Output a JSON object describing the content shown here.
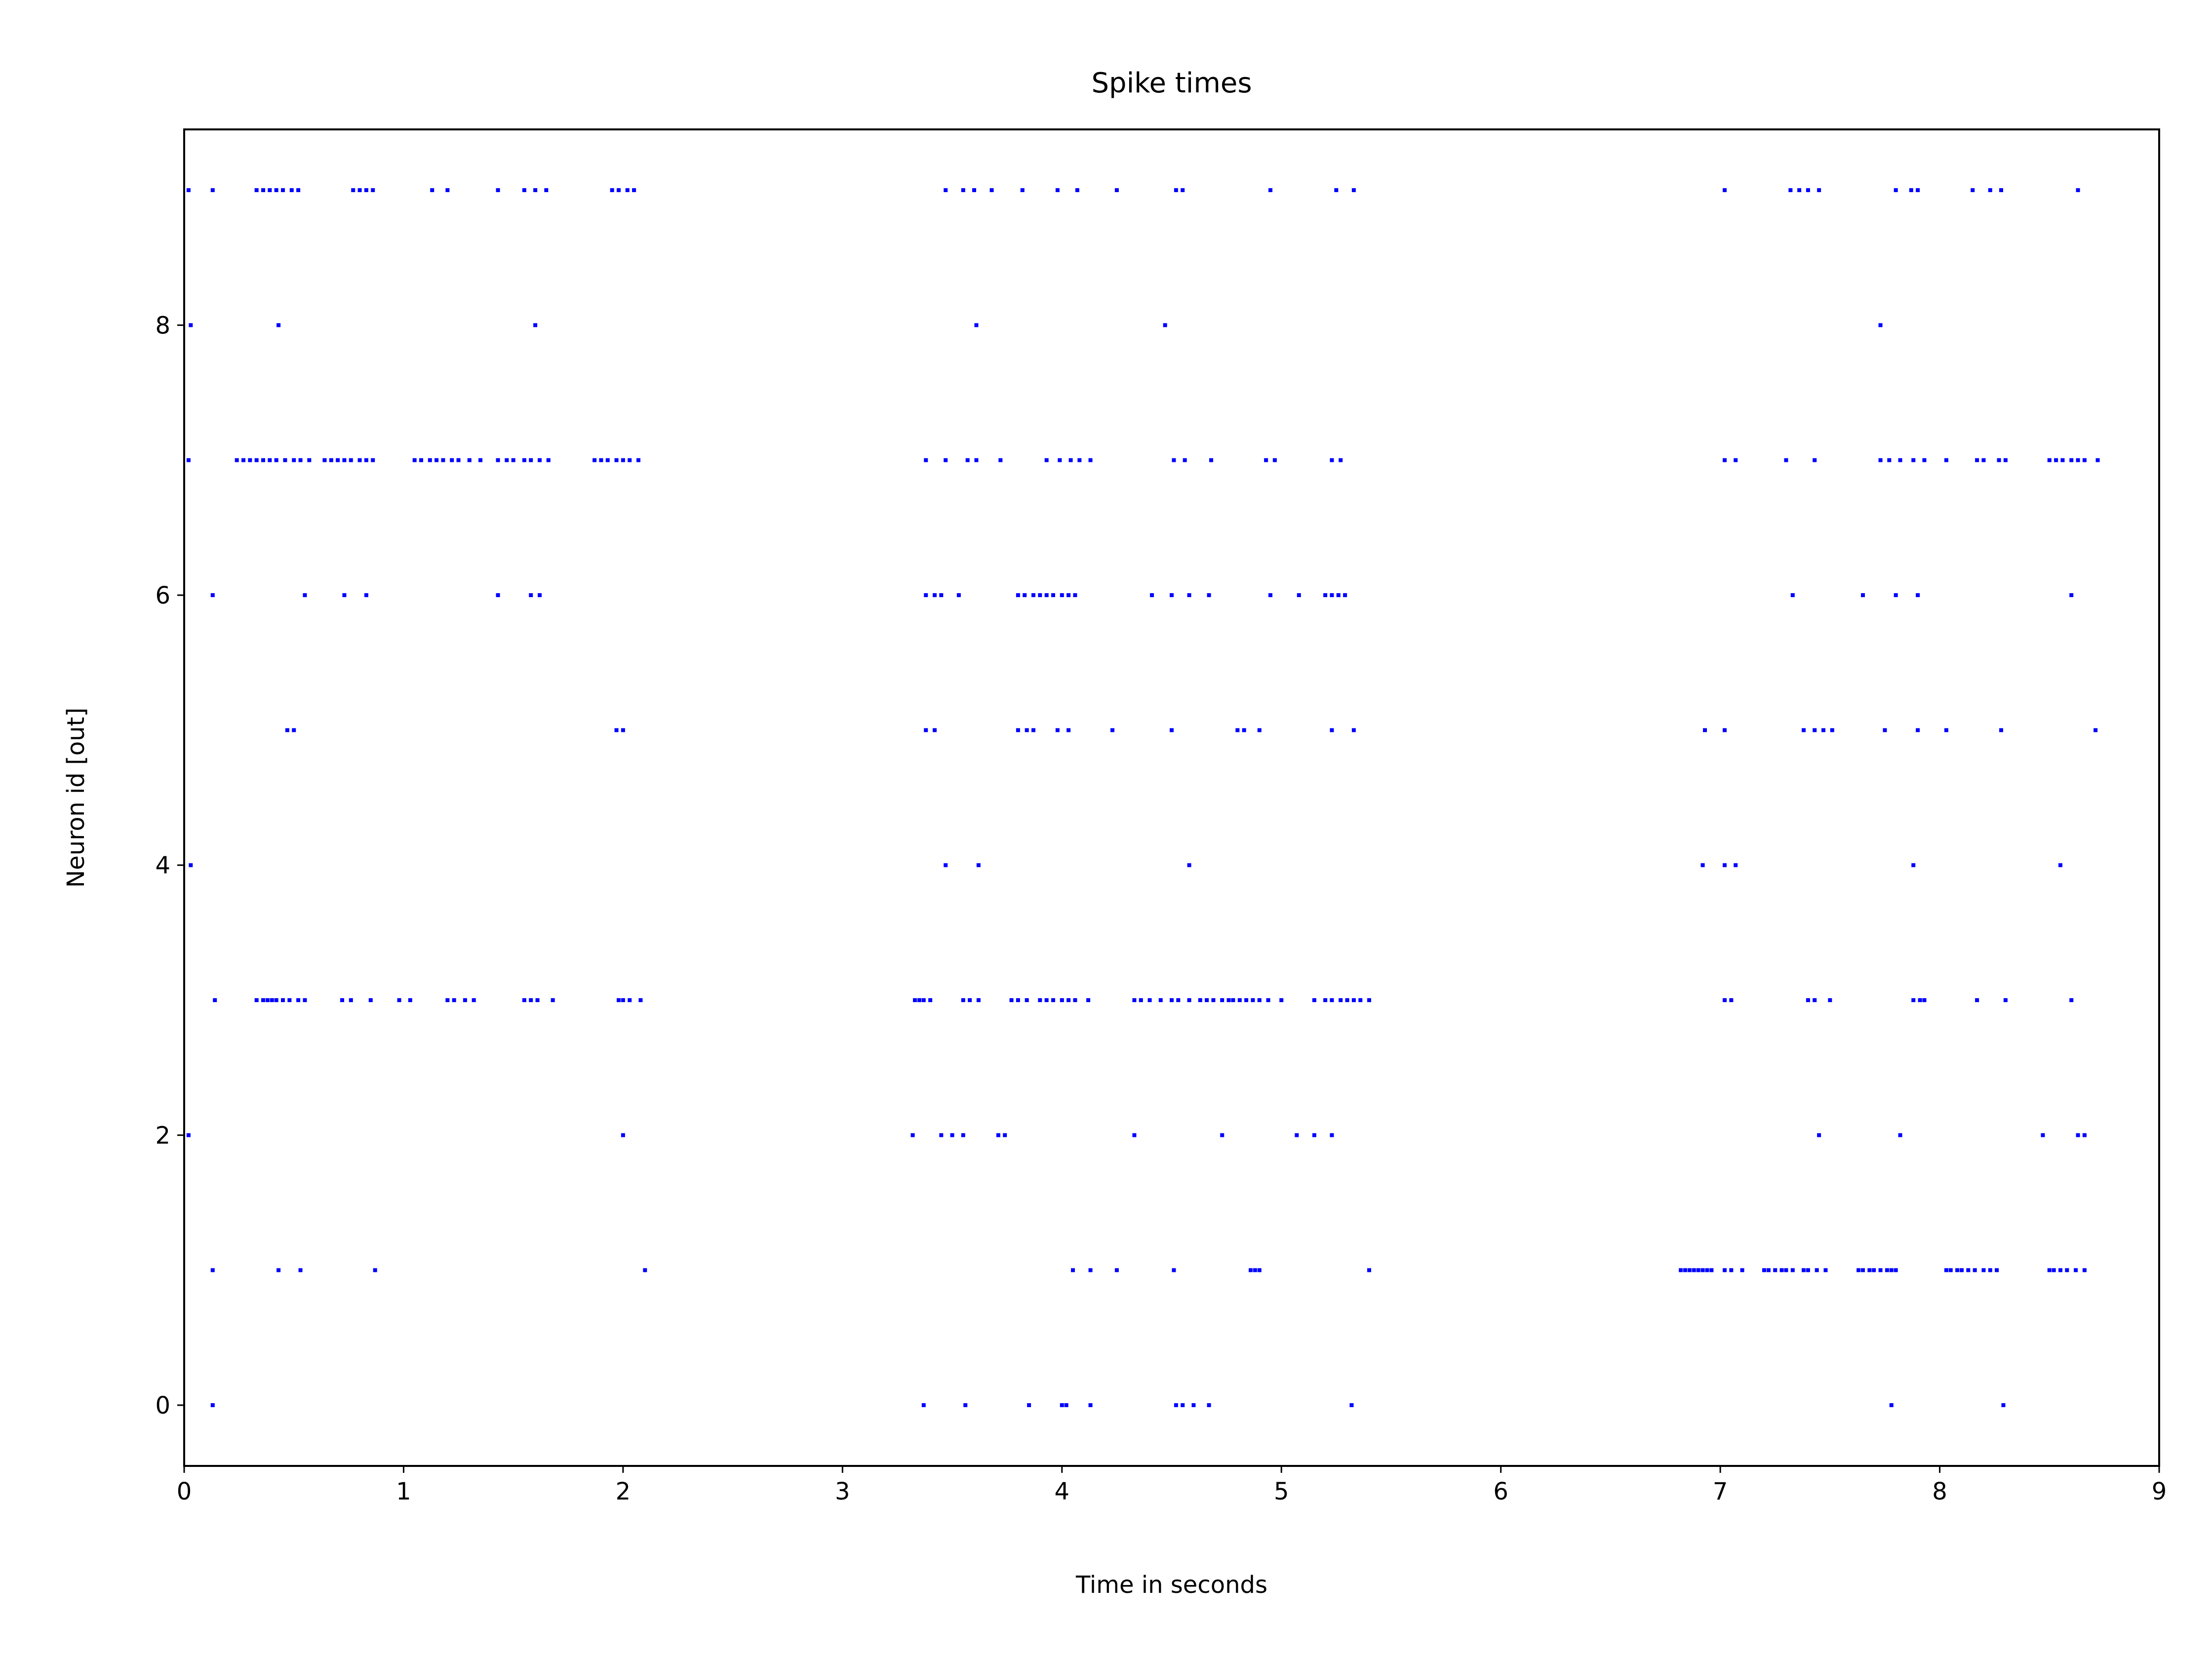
{
  "chart_data": {
    "type": "scatter",
    "title": "Spike times",
    "xlabel": "Time in seconds",
    "ylabel": "Neuron id [out]",
    "xlim": [
      0,
      9
    ],
    "ylim": [
      -0.45,
      9.45
    ],
    "xticks": [
      0,
      1,
      2,
      3,
      4,
      5,
      6,
      7,
      8,
      9
    ],
    "yticks": [
      0,
      2,
      4,
      6,
      8
    ],
    "grid": false,
    "legend": "none",
    "marker_color": "#0000ff",
    "series": [
      {
        "neuron": 0,
        "x": [
          0.13,
          3.37,
          3.56,
          3.85,
          4.0,
          4.02,
          4.13,
          4.52,
          4.55,
          4.6,
          4.67,
          5.32,
          7.78,
          8.29
        ]
      },
      {
        "neuron": 1,
        "x": [
          0.13,
          0.43,
          0.53,
          0.87,
          2.1,
          4.05,
          4.13,
          4.25,
          4.51,
          4.86,
          4.88,
          4.9,
          5.4,
          6.82,
          6.84,
          6.86,
          6.88,
          6.9,
          6.92,
          6.94,
          6.96,
          7.02,
          7.05,
          7.1,
          7.2,
          7.22,
          7.25,
          7.28,
          7.3,
          7.33,
          7.38,
          7.4,
          7.44,
          7.48,
          7.63,
          7.65,
          7.68,
          7.7,
          7.73,
          7.76,
          7.78,
          7.8,
          8.03,
          8.05,
          8.08,
          8.1,
          8.13,
          8.16,
          8.2,
          8.23,
          8.26,
          8.5,
          8.52,
          8.55,
          8.58,
          8.62,
          8.66
        ]
      },
      {
        "neuron": 2,
        "x": [
          0.02,
          2.0,
          3.32,
          3.45,
          3.5,
          3.55,
          3.71,
          3.74,
          4.33,
          4.73,
          5.07,
          5.15,
          5.23,
          7.45,
          7.82,
          8.47,
          8.63,
          8.66
        ]
      },
      {
        "neuron": 3,
        "x": [
          0.14,
          0.33,
          0.36,
          0.38,
          0.4,
          0.42,
          0.45,
          0.48,
          0.52,
          0.55,
          0.72,
          0.76,
          0.85,
          0.98,
          1.03,
          1.2,
          1.23,
          1.28,
          1.32,
          1.55,
          1.58,
          1.61,
          1.68,
          1.98,
          2.0,
          2.03,
          2.08,
          3.33,
          3.35,
          3.37,
          3.4,
          3.55,
          3.58,
          3.62,
          3.77,
          3.8,
          3.84,
          3.9,
          3.93,
          3.96,
          4.0,
          4.03,
          4.06,
          4.12,
          4.33,
          4.36,
          4.4,
          4.45,
          4.5,
          4.53,
          4.58,
          4.63,
          4.66,
          4.69,
          4.73,
          4.76,
          4.78,
          4.81,
          4.84,
          4.87,
          4.9,
          4.94,
          5.0,
          5.15,
          5.2,
          5.23,
          5.27,
          5.3,
          5.33,
          5.36,
          5.4,
          7.02,
          7.05,
          7.4,
          7.43,
          7.5,
          7.88,
          7.91,
          7.93,
          8.17,
          8.3,
          8.6
        ]
      },
      {
        "neuron": 4,
        "x": [
          0.03,
          3.47,
          3.62,
          4.58,
          6.92,
          7.02,
          7.07,
          7.88,
          8.55
        ]
      },
      {
        "neuron": 5,
        "x": [
          0.47,
          0.5,
          1.97,
          2.0,
          3.38,
          3.42,
          3.8,
          3.84,
          3.87,
          3.98,
          4.03,
          4.23,
          4.5,
          4.8,
          4.83,
          4.9,
          5.23,
          5.33,
          6.93,
          7.02,
          7.38,
          7.43,
          7.47,
          7.51,
          7.75,
          7.9,
          8.03,
          8.28,
          8.71
        ]
      },
      {
        "neuron": 6,
        "x": [
          0.13,
          0.55,
          0.73,
          0.83,
          1.43,
          1.58,
          1.62,
          3.38,
          3.42,
          3.45,
          3.53,
          3.8,
          3.83,
          3.87,
          3.9,
          3.93,
          3.96,
          4.0,
          4.03,
          4.06,
          4.41,
          4.5,
          4.58,
          4.67,
          4.95,
          5.08,
          5.2,
          5.23,
          5.26,
          5.29,
          7.33,
          7.65,
          7.8,
          7.9,
          8.6
        ]
      },
      {
        "neuron": 7,
        "x": [
          0.02,
          0.24,
          0.27,
          0.3,
          0.33,
          0.36,
          0.39,
          0.42,
          0.46,
          0.5,
          0.53,
          0.57,
          0.64,
          0.67,
          0.7,
          0.73,
          0.76,
          0.8,
          0.83,
          0.86,
          1.05,
          1.08,
          1.12,
          1.15,
          1.18,
          1.22,
          1.25,
          1.3,
          1.35,
          1.43,
          1.47,
          1.5,
          1.55,
          1.58,
          1.62,
          1.66,
          1.87,
          1.9,
          1.93,
          1.97,
          2.0,
          2.03,
          2.07,
          3.38,
          3.47,
          3.57,
          3.61,
          3.72,
          3.93,
          3.99,
          4.04,
          4.08,
          4.13,
          4.51,
          4.56,
          4.68,
          4.93,
          4.97,
          5.23,
          5.27,
          7.02,
          7.07,
          7.3,
          7.43,
          7.73,
          7.77,
          7.82,
          7.88,
          7.93,
          8.03,
          8.17,
          8.2,
          8.27,
          8.3,
          8.5,
          8.53,
          8.56,
          8.6,
          8.63,
          8.66,
          8.72
        ]
      },
      {
        "neuron": 8,
        "x": [
          0.03,
          0.43,
          1.6,
          3.61,
          4.47,
          7.73
        ]
      },
      {
        "neuron": 9,
        "x": [
          0.02,
          0.13,
          0.33,
          0.36,
          0.39,
          0.42,
          0.45,
          0.49,
          0.52,
          0.77,
          0.8,
          0.83,
          0.86,
          1.13,
          1.2,
          1.43,
          1.55,
          1.6,
          1.65,
          1.95,
          1.98,
          2.02,
          2.05,
          3.47,
          3.55,
          3.6,
          3.68,
          3.82,
          3.98,
          4.07,
          4.25,
          4.52,
          4.55,
          4.95,
          5.25,
          5.33,
          7.02,
          7.32,
          7.36,
          7.4,
          7.45,
          7.8,
          7.87,
          7.9,
          8.15,
          8.23,
          8.28,
          8.63
        ]
      }
    ]
  }
}
